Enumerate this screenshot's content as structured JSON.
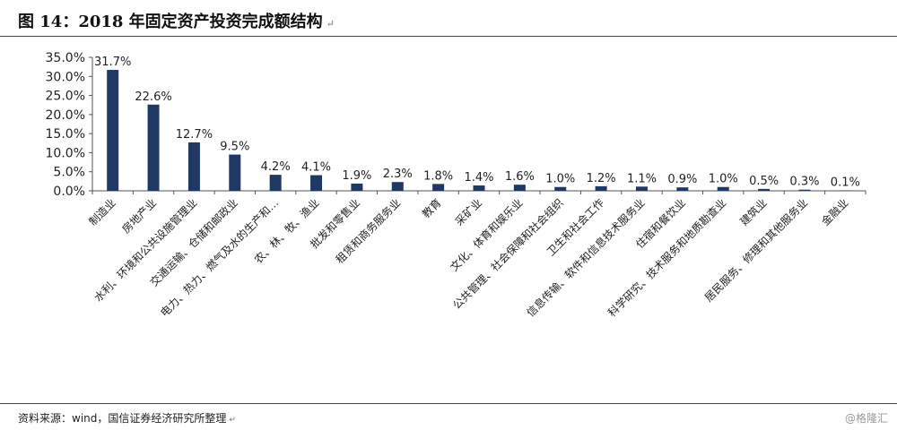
{
  "header": {
    "title": "图 14：2018 年固定资产投资完成额结构",
    "edit_mark": "↵"
  },
  "footer": {
    "source": "资料来源：wind，国信证券经济研究所整理",
    "edit_mark": "↵",
    "watermark": "@格隆汇"
  },
  "chart_data": {
    "type": "bar",
    "title": "",
    "xlabel": "",
    "ylabel": "",
    "ylim": [
      0,
      35
    ],
    "yticks": [
      "0.0%",
      "5.0%",
      "10.0%",
      "15.0%",
      "20.0%",
      "25.0%",
      "30.0%",
      "35.0%"
    ],
    "bar_color": "#1f3864",
    "grid": false,
    "categories": [
      "制造业",
      "房地产业",
      "水利、环境和公共设施管理业",
      "交通运输、仓储和邮政业",
      "电力、热力、燃气及水的生产和…",
      "农、林、牧、渔业",
      "批发和零售业",
      "租赁和商务服务业",
      "教育",
      "采矿业",
      "文化、体育和娱乐业",
      "公共管理、社会保障和社会组织",
      "卫生和社会工作",
      "信息传输、软件和信息技术服务业",
      "住宿和餐饮业",
      "科学研究、技术服务和地质勘查业",
      "建筑业",
      "居民服务、修理和其他服务业",
      "金融业"
    ],
    "values": [
      31.7,
      22.6,
      12.7,
      9.5,
      4.2,
      4.1,
      1.9,
      2.3,
      1.8,
      1.4,
      1.6,
      1.0,
      1.2,
      1.1,
      0.9,
      1.0,
      0.5,
      0.3,
      0.1
    ],
    "labels": [
      "31.7%",
      "22.6%",
      "12.7%",
      "9.5%",
      "4.2%",
      "4.1%",
      "1.9%",
      "2.3%",
      "1.8%",
      "1.4%",
      "1.6%",
      "1.0%",
      "1.2%",
      "1.1%",
      "0.9%",
      "1.0%",
      "0.5%",
      "0.3%",
      "0.1%"
    ]
  }
}
